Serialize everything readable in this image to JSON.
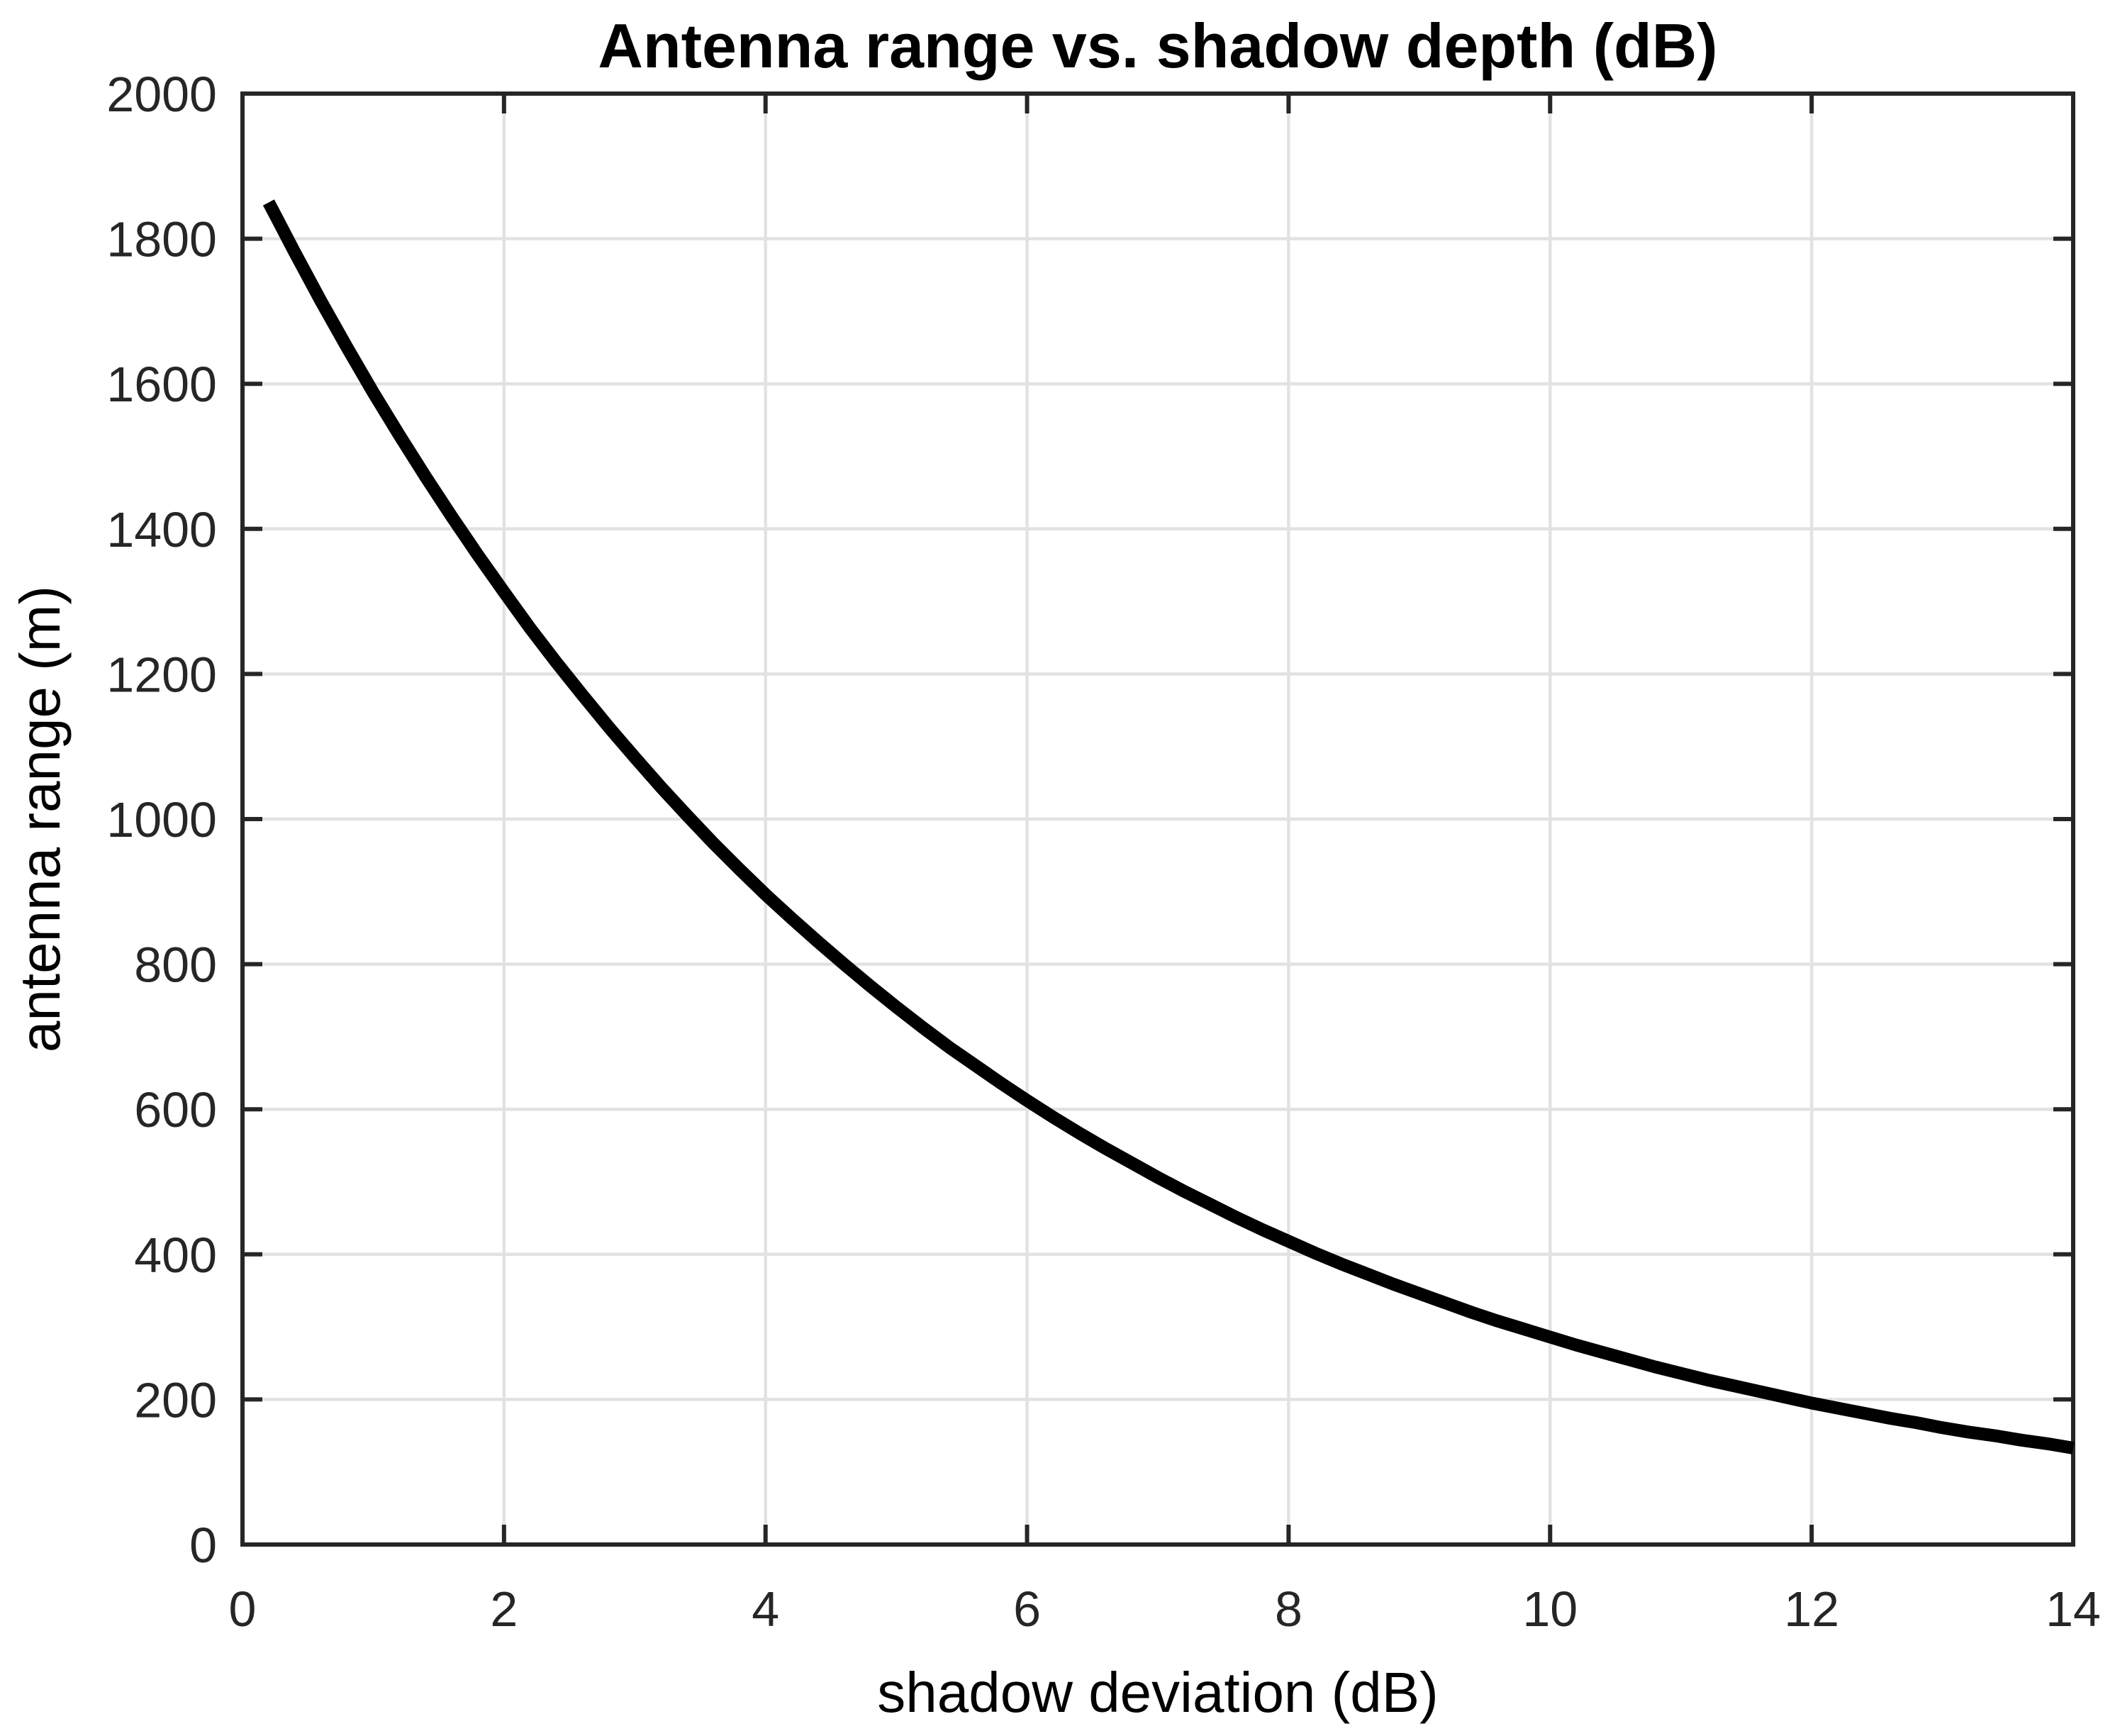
{
  "figure": {
    "title": "Antenna range vs. shadow depth (dB)",
    "xlabel": "shadow deviation (dB)",
    "ylabel": "antenna range (m)"
  },
  "style": {
    "background": "#ffffff",
    "axis_color": "#262626",
    "grid_color": "#e2e2e2",
    "tick_label_color": "#262626",
    "line_color": "#000000"
  },
  "chart_data": {
    "type": "line",
    "title": "Antenna range vs. shadow depth (dB)",
    "xlabel": "shadow deviation (dB)",
    "ylabel": "antenna range (m)",
    "xlim": [
      0,
      14
    ],
    "ylim": [
      0,
      2000
    ],
    "x_ticks": [
      0,
      2,
      4,
      6,
      8,
      10,
      12,
      14
    ],
    "y_ticks": [
      0,
      200,
      400,
      600,
      800,
      1000,
      1200,
      1400,
      1600,
      1800,
      2000
    ],
    "grid": true,
    "legend": "none",
    "series": [
      {
        "name": "antenna range",
        "color": "#000000",
        "line_width": 18,
        "x": [
          0.2,
          0.4,
          0.6,
          0.8,
          1.0,
          1.2,
          1.4,
          1.6,
          1.8,
          2.0,
          2.2,
          2.4,
          2.6,
          2.8,
          3.0,
          3.2,
          3.4,
          3.6,
          3.8,
          4.0,
          4.2,
          4.4,
          4.6,
          4.8,
          5.0,
          5.2,
          5.4,
          5.6,
          5.8,
          6.0,
          6.2,
          6.4,
          6.6,
          6.8,
          7.0,
          7.2,
          7.4,
          7.6,
          7.8,
          8.0,
          8.2,
          8.4,
          8.6,
          8.8,
          9.0,
          9.2,
          9.4,
          9.6,
          9.8,
          10.0,
          10.2,
          10.4,
          10.6,
          10.8,
          11.0,
          11.2,
          11.4,
          11.6,
          11.8,
          12.0,
          12.2,
          12.4,
          12.6,
          12.8,
          13.0,
          13.2,
          13.4,
          13.6,
          13.8,
          14.0
        ],
        "y": [
          1850,
          1781,
          1714,
          1650,
          1588,
          1529,
          1472,
          1417,
          1364,
          1313,
          1263,
          1216,
          1171,
          1127,
          1085,
          1044,
          1005,
          967,
          931,
          896,
          863,
          831,
          800,
          770,
          741,
          713,
          686,
          661,
          636,
          612,
          589,
          567,
          546,
          526,
          506,
          487,
          469,
          451,
          434,
          418,
          402,
          387,
          373,
          359,
          346,
          333,
          320,
          308,
          297,
          286,
          275,
          265,
          255,
          245,
          236,
          227,
          219,
          211,
          203,
          195,
          188,
          181,
          174,
          168,
          161,
          155,
          150,
          144,
          139,
          133
        ]
      }
    ]
  }
}
